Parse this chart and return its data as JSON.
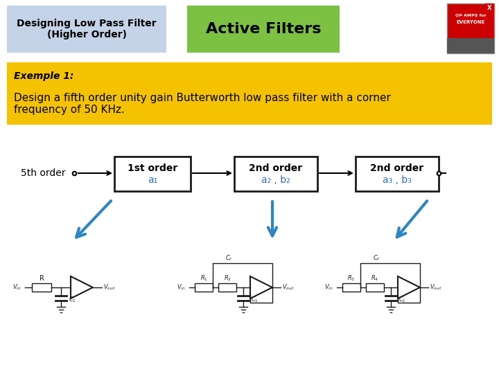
{
  "bg_color": "#ffffff",
  "header_left_text": "Designing Low Pass Filter\n(Higher Order)",
  "header_left_bg": "#c5d3e8",
  "header_center_text": "Active Filters",
  "header_center_bg": "#7dc142",
  "example_bg": "#f5c200",
  "example_title": "Exemple 1:",
  "example_body": "Design a fifth order unity gain Butterworth low pass filter with a corner\nfrequency of 50 KHz.",
  "block1_label1": "1st order",
  "block1_label2": "a₁",
  "block2_label1": "2nd order",
  "block2_label2": "a₂ , b₂",
  "block3_label1": "2nd order",
  "block3_label2": "a₃ , b₃",
  "fifth_order_label": "5th order",
  "arrow_color": "#2e86c1",
  "block_edge_color": "#1a1a1a",
  "circuit_color": "#1a1a1a"
}
